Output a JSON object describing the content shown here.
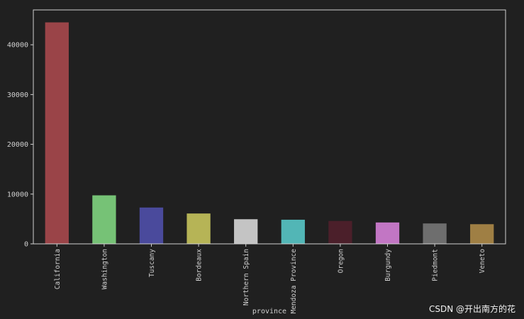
{
  "chart_data": {
    "type": "bar",
    "title": "",
    "xlabel": "province",
    "ylabel": "",
    "categories": [
      "California",
      "Washington",
      "Tuscany",
      "Bordeaux",
      "Northern Spain",
      "Mendoza Province",
      "Oregon",
      "Burgundy",
      "Piedmont",
      "Veneto"
    ],
    "values": [
      44500,
      9750,
      7300,
      6100,
      4950,
      4850,
      4600,
      4300,
      4100,
      3950
    ],
    "colors": [
      "#9a4448",
      "#76c276",
      "#4a4a9c",
      "#b6b456",
      "#c4c4c4",
      "#52b6b6",
      "#4b1f2a",
      "#c276c4",
      "#6e6e6e",
      "#9f7f44"
    ],
    "ylim": [
      0,
      47000
    ],
    "yticks": [
      0,
      10000,
      20000,
      30000,
      40000
    ],
    "grid": false,
    "legend": "none"
  },
  "watermark": "CSDN @开出南方的花",
  "style": {
    "background": "#202020",
    "axis_color": "#d0d0d0",
    "text_color": "#d0d0d0"
  }
}
